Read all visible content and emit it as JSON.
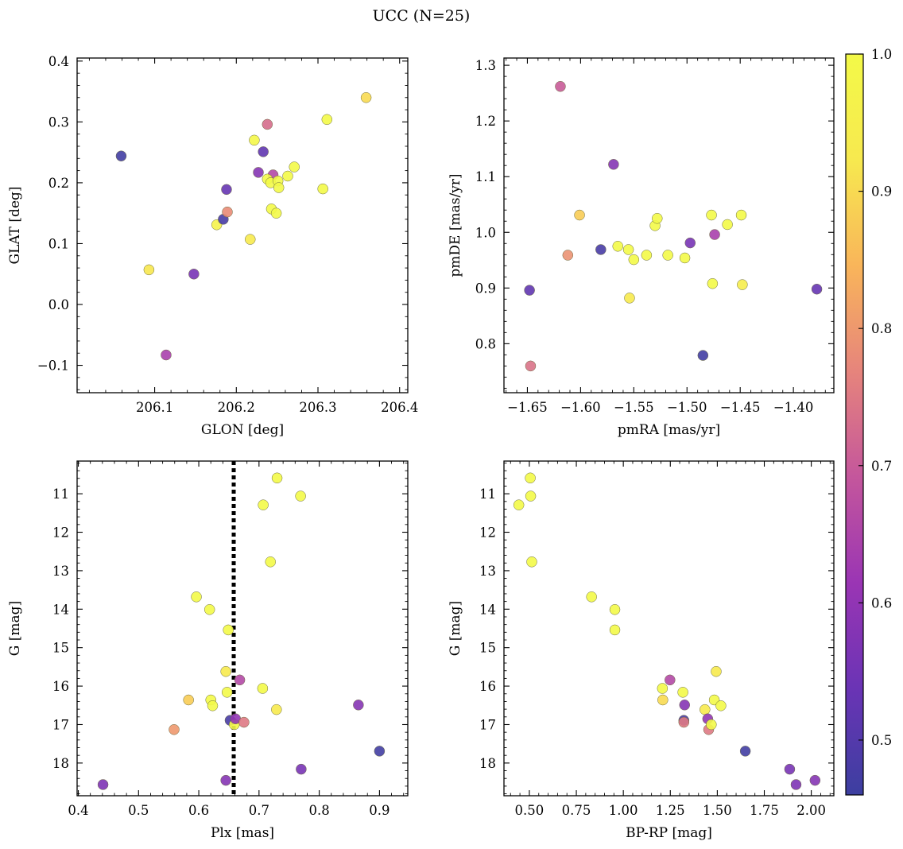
{
  "suptitle": "UCC (N=25)",
  "colormap": {
    "name": "plasma",
    "range": [
      0.46,
      1.0
    ],
    "ticks": [
      "0.5",
      "0.6",
      "0.7",
      "0.8",
      "0.9",
      "1.0"
    ],
    "tick_values": [
      0.5,
      0.6,
      0.7,
      0.8,
      0.9,
      1.0
    ],
    "stops": [
      "#3c3fa0",
      "#6a34b5",
      "#9a35b4",
      "#c4569c",
      "#e6847c",
      "#f9b55a",
      "#f7e94f",
      "#f3f948"
    ]
  },
  "chart_data": [
    {
      "id": "glon-glat",
      "type": "scatter",
      "title": "",
      "xlabel": "GLON [deg]",
      "ylabel": "GLAT [deg]",
      "xlim": [
        206.005,
        206.41
      ],
      "ylim": [
        -0.145,
        0.405
      ],
      "xticks": [
        "206.1",
        "206.2",
        "206.3",
        "206.4"
      ],
      "xtick_values": [
        206.1,
        206.2,
        206.3,
        206.4
      ],
      "yticks": [
        "−0.1",
        "0.0",
        "0.1",
        "0.2",
        "0.3",
        "0.4"
      ],
      "ytick_values": [
        -0.1,
        0.0,
        0.1,
        0.2,
        0.3,
        0.4
      ],
      "points": [
        {
          "x": 206.059,
          "y": 0.244,
          "c": 0.47
        },
        {
          "x": 206.093,
          "y": 0.057,
          "c": 0.92
        },
        {
          "x": 206.114,
          "y": -0.083,
          "c": 0.64
        },
        {
          "x": 206.148,
          "y": 0.05,
          "c": 0.56
        },
        {
          "x": 206.176,
          "y": 0.131,
          "c": 0.97
        },
        {
          "x": 206.184,
          "y": 0.14,
          "c": 0.48
        },
        {
          "x": 206.188,
          "y": 0.189,
          "c": 0.53
        },
        {
          "x": 206.189,
          "y": 0.152,
          "c": 0.78
        },
        {
          "x": 206.217,
          "y": 0.107,
          "c": 0.93
        },
        {
          "x": 206.222,
          "y": 0.27,
          "c": 0.99
        },
        {
          "x": 206.227,
          "y": 0.217,
          "c": 0.58
        },
        {
          "x": 206.233,
          "y": 0.251,
          "c": 0.52
        },
        {
          "x": 206.238,
          "y": 0.296,
          "c": 0.73
        },
        {
          "x": 206.245,
          "y": 0.213,
          "c": 0.66
        },
        {
          "x": 206.238,
          "y": 0.206,
          "c": 1.0
        },
        {
          "x": 206.242,
          "y": 0.2,
          "c": 1.0
        },
        {
          "x": 206.243,
          "y": 0.157,
          "c": 1.0
        },
        {
          "x": 206.249,
          "y": 0.15,
          "c": 1.0
        },
        {
          "x": 206.251,
          "y": 0.203,
          "c": 1.0
        },
        {
          "x": 206.252,
          "y": 0.192,
          "c": 1.0
        },
        {
          "x": 206.263,
          "y": 0.211,
          "c": 1.0
        },
        {
          "x": 206.271,
          "y": 0.226,
          "c": 1.0
        },
        {
          "x": 206.306,
          "y": 0.19,
          "c": 1.0
        },
        {
          "x": 206.311,
          "y": 0.304,
          "c": 1.0
        },
        {
          "x": 206.359,
          "y": 0.34,
          "c": 0.9
        }
      ]
    },
    {
      "id": "pmra-pmde",
      "type": "scatter",
      "title": "",
      "xlabel": "pmRA [mas/yr]",
      "ylabel": "pmDE [mas/yr]",
      "xlim": [
        -1.672,
        -1.362
      ],
      "ylim": [
        0.712,
        1.313
      ],
      "xticks": [
        "−1.65",
        "−1.60",
        "−1.55",
        "−1.50",
        "−1.45",
        "−1.40"
      ],
      "xtick_values": [
        -1.65,
        -1.6,
        -1.55,
        -1.5,
        -1.45,
        -1.4
      ],
      "yticks": [
        "0.8",
        "0.9",
        "1.0",
        "1.1",
        "1.2",
        "1.3"
      ],
      "ytick_values": [
        0.8,
        0.9,
        1.0,
        1.1,
        1.2,
        1.3
      ],
      "points": [
        {
          "x": -1.648,
          "y": 0.896,
          "c": 0.52
        },
        {
          "x": -1.647,
          "y": 0.76,
          "c": 0.74
        },
        {
          "x": -1.619,
          "y": 1.262,
          "c": 0.7
        },
        {
          "x": -1.612,
          "y": 0.959,
          "c": 0.79
        },
        {
          "x": -1.601,
          "y": 1.031,
          "c": 0.88
        },
        {
          "x": -1.581,
          "y": 0.969,
          "c": 0.48
        },
        {
          "x": -1.569,
          "y": 1.122,
          "c": 0.58
        },
        {
          "x": -1.565,
          "y": 0.975,
          "c": 1.0
        },
        {
          "x": -1.555,
          "y": 0.969,
          "c": 1.0
        },
        {
          "x": -1.554,
          "y": 0.882,
          "c": 0.93
        },
        {
          "x": -1.55,
          "y": 0.951,
          "c": 1.0
        },
        {
          "x": -1.538,
          "y": 0.959,
          "c": 1.0
        },
        {
          "x": -1.53,
          "y": 1.012,
          "c": 1.0
        },
        {
          "x": -1.528,
          "y": 1.025,
          "c": 1.0
        },
        {
          "x": -1.518,
          "y": 0.959,
          "c": 1.0
        },
        {
          "x": -1.502,
          "y": 0.954,
          "c": 1.0
        },
        {
          "x": -1.497,
          "y": 0.981,
          "c": 0.56
        },
        {
          "x": -1.485,
          "y": 0.779,
          "c": 0.47
        },
        {
          "x": -1.477,
          "y": 1.031,
          "c": 1.0
        },
        {
          "x": -1.476,
          "y": 0.908,
          "c": 1.0
        },
        {
          "x": -1.474,
          "y": 0.996,
          "c": 0.64
        },
        {
          "x": -1.462,
          "y": 1.014,
          "c": 1.0
        },
        {
          "x": -1.449,
          "y": 1.031,
          "c": 1.0
        },
        {
          "x": -1.448,
          "y": 0.906,
          "c": 0.94
        },
        {
          "x": -1.378,
          "y": 0.898,
          "c": 0.53
        }
      ]
    },
    {
      "id": "plx-g",
      "type": "scatter",
      "title": "",
      "xlabel": "Plx [mas]",
      "ylabel": "G [mag]",
      "xlim": [
        0.398,
        0.947
      ],
      "ylim": [
        18.85,
        10.15
      ],
      "xticks": [
        "0.4",
        "0.5",
        "0.6",
        "0.7",
        "0.8",
        "0.9"
      ],
      "xtick_values": [
        0.4,
        0.5,
        0.6,
        0.7,
        0.8,
        0.9
      ],
      "yticks": [
        "11",
        "12",
        "13",
        "14",
        "15",
        "16",
        "17",
        "18"
      ],
      "ytick_values": [
        11,
        12,
        13,
        14,
        15,
        16,
        17,
        18
      ],
      "vline": 0.658,
      "points": [
        {
          "x": 0.441,
          "y": 18.56,
          "c": 0.57
        },
        {
          "x": 0.559,
          "y": 17.13,
          "c": 0.8
        },
        {
          "x": 0.583,
          "y": 16.36,
          "c": 0.88
        },
        {
          "x": 0.596,
          "y": 13.68,
          "c": 1.0
        },
        {
          "x": 0.618,
          "y": 14.01,
          "c": 1.0
        },
        {
          "x": 0.62,
          "y": 16.36,
          "c": 1.0
        },
        {
          "x": 0.623,
          "y": 16.51,
          "c": 1.0
        },
        {
          "x": 0.645,
          "y": 18.45,
          "c": 0.58
        },
        {
          "x": 0.645,
          "y": 15.62,
          "c": 0.93
        },
        {
          "x": 0.647,
          "y": 16.16,
          "c": 1.0
        },
        {
          "x": 0.649,
          "y": 14.54,
          "c": 1.0
        },
        {
          "x": 0.652,
          "y": 16.89,
          "c": 0.48
        },
        {
          "x": 0.659,
          "y": 17.0,
          "c": 1.0
        },
        {
          "x": 0.661,
          "y": 16.85,
          "c": 0.6
        },
        {
          "x": 0.668,
          "y": 15.84,
          "c": 0.66
        },
        {
          "x": 0.675,
          "y": 16.94,
          "c": 0.75
        },
        {
          "x": 0.706,
          "y": 16.06,
          "c": 1.0
        },
        {
          "x": 0.707,
          "y": 11.29,
          "c": 1.0
        },
        {
          "x": 0.719,
          "y": 12.77,
          "c": 1.0
        },
        {
          "x": 0.729,
          "y": 16.61,
          "c": 0.93
        },
        {
          "x": 0.73,
          "y": 10.59,
          "c": 1.0
        },
        {
          "x": 0.769,
          "y": 11.06,
          "c": 1.0
        },
        {
          "x": 0.77,
          "y": 18.16,
          "c": 0.56
        },
        {
          "x": 0.865,
          "y": 16.49,
          "c": 0.58
        },
        {
          "x": 0.9,
          "y": 17.69,
          "c": 0.47
        }
      ]
    },
    {
      "id": "bprp-g",
      "type": "scatter",
      "title": "",
      "xlabel": "BP-RP [mag]",
      "ylabel": "G [mag]",
      "xlim": [
        0.365,
        2.12
      ],
      "ylim": [
        18.85,
        10.15
      ],
      "xticks": [
        "0.50",
        "0.75",
        "1.00",
        "1.25",
        "1.50",
        "1.75",
        "2.00"
      ],
      "xtick_values": [
        0.5,
        0.75,
        1.0,
        1.25,
        1.5,
        1.75,
        2.0
      ],
      "yticks": [
        "11",
        "12",
        "13",
        "14",
        "15",
        "16",
        "17",
        "18"
      ],
      "ytick_values": [
        11,
        12,
        13,
        14,
        15,
        16,
        17,
        18
      ],
      "points": [
        {
          "x": 0.444,
          "y": 11.29,
          "c": 1.0
        },
        {
          "x": 0.505,
          "y": 10.59,
          "c": 1.0
        },
        {
          "x": 0.507,
          "y": 11.06,
          "c": 1.0
        },
        {
          "x": 0.513,
          "y": 12.77,
          "c": 1.0
        },
        {
          "x": 0.831,
          "y": 13.68,
          "c": 1.0
        },
        {
          "x": 0.955,
          "y": 14.01,
          "c": 1.0
        },
        {
          "x": 0.955,
          "y": 14.54,
          "c": 1.0
        },
        {
          "x": 1.208,
          "y": 16.06,
          "c": 1.0
        },
        {
          "x": 1.21,
          "y": 16.36,
          "c": 0.9
        },
        {
          "x": 1.248,
          "y": 15.84,
          "c": 0.66
        },
        {
          "x": 1.317,
          "y": 16.16,
          "c": 1.0
        },
        {
          "x": 1.322,
          "y": 16.89,
          "c": 0.48
        },
        {
          "x": 1.322,
          "y": 16.94,
          "c": 0.75
        },
        {
          "x": 1.326,
          "y": 16.49,
          "c": 0.58
        },
        {
          "x": 1.434,
          "y": 16.61,
          "c": 0.93
        },
        {
          "x": 1.449,
          "y": 16.85,
          "c": 0.6
        },
        {
          "x": 1.454,
          "y": 17.13,
          "c": 0.75
        },
        {
          "x": 1.468,
          "y": 17.0,
          "c": 1.0
        },
        {
          "x": 1.484,
          "y": 16.36,
          "c": 1.0
        },
        {
          "x": 1.494,
          "y": 15.62,
          "c": 0.93
        },
        {
          "x": 1.519,
          "y": 16.51,
          "c": 1.0
        },
        {
          "x": 1.649,
          "y": 17.69,
          "c": 0.47
        },
        {
          "x": 1.885,
          "y": 18.16,
          "c": 0.56
        },
        {
          "x": 1.919,
          "y": 18.56,
          "c": 0.57
        },
        {
          "x": 2.02,
          "y": 18.45,
          "c": 0.58
        }
      ]
    }
  ]
}
